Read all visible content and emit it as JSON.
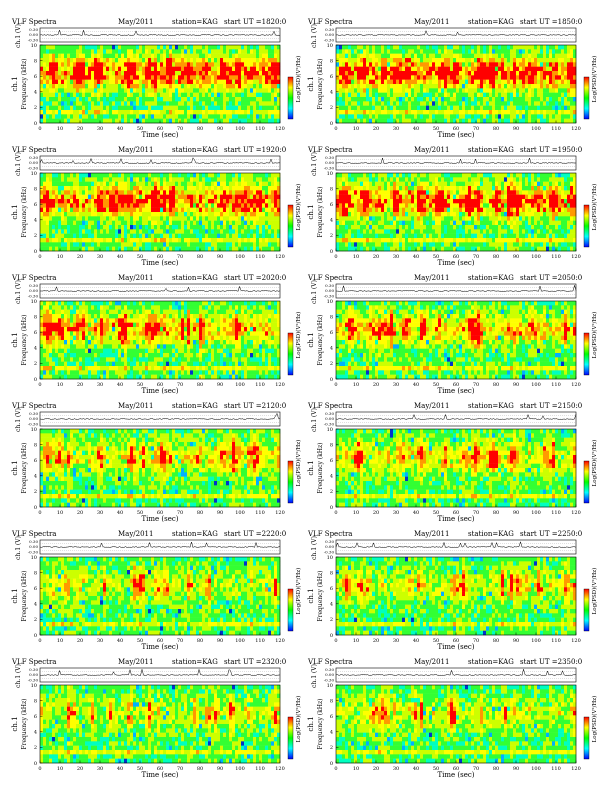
{
  "page": {
    "common": {
      "title_left": "VLF Spectra",
      "date": "May/2011",
      "station": "station=KAG",
      "time_prefix": "start  UT  =",
      "ylabel_channel": "ch.1",
      "ylabel_freq": "Frequency  (kHz)",
      "ylabel_top": "ch.1 (V)",
      "xlabel": "Time  (sec)",
      "colorbar_label": "Log(PSD)(V²/Hz)"
    }
  },
  "chart_data": [
    {
      "type": "heatmap",
      "start_ut": "1820:0",
      "x": {
        "label": "Time  (sec)",
        "lim": [
          0,
          120
        ],
        "ticks": [
          0,
          10,
          20,
          30,
          40,
          50,
          60,
          70,
          80,
          90,
          100,
          110,
          120
        ]
      },
      "y": {
        "label": "Frequency  (kHz)",
        "lim": [
          0,
          10
        ],
        "ticks": [
          0,
          2,
          4,
          6,
          8,
          10
        ]
      },
      "top_trace": {
        "label": "ch.1 (V)",
        "ticks": [
          "0.30",
          "0.00",
          "-0.30"
        ]
      },
      "colorbar": {
        "label": "Log(PSD)(V²/Hz)",
        "colors": [
          "#ff0000",
          "#ffff00",
          "#00ff00",
          "#00ffff",
          "#0000ff"
        ]
      },
      "activity": 0.95
    },
    {
      "type": "heatmap",
      "start_ut": "1850:0",
      "x": {
        "label": "Time  (sec)",
        "lim": [
          0,
          120
        ],
        "ticks": [
          0,
          10,
          20,
          30,
          40,
          50,
          60,
          70,
          80,
          90,
          100,
          110,
          120
        ]
      },
      "y": {
        "label": "Frequency  (kHz)",
        "lim": [
          0,
          10
        ],
        "ticks": [
          0,
          2,
          4,
          6,
          8,
          10
        ]
      },
      "top_trace": {
        "label": "ch.1 (V)",
        "ticks": [
          "0.30",
          "0.00",
          "-0.30"
        ]
      },
      "colorbar": {
        "label": "Log(PSD)(V²/Hz)",
        "colors": [
          "#ff0000",
          "#ffff00",
          "#00ff00",
          "#00ffff",
          "#0000ff"
        ]
      },
      "activity": 0.95
    },
    {
      "type": "heatmap",
      "start_ut": "1920:0",
      "x": {
        "label": "Time  (sec)",
        "lim": [
          0,
          120
        ],
        "ticks": [
          0,
          10,
          20,
          30,
          40,
          50,
          60,
          70,
          80,
          90,
          100,
          110,
          120
        ]
      },
      "y": {
        "label": "Frequency  (kHz)",
        "lim": [
          0,
          10
        ],
        "ticks": [
          0,
          2,
          4,
          6,
          8,
          10
        ]
      },
      "top_trace": {
        "label": "ch.1 (V)",
        "ticks": [
          "0.30",
          "0.00",
          "-0.30"
        ]
      },
      "colorbar": {
        "label": "Log(PSD)(V²/Hz)",
        "colors": [
          "#ff0000",
          "#ffff00",
          "#00ff00",
          "#00ffff",
          "#0000ff"
        ]
      },
      "activity": 0.85
    },
    {
      "type": "heatmap",
      "start_ut": "1950:0",
      "x": {
        "label": "Time  (sec)",
        "lim": [
          0,
          120
        ],
        "ticks": [
          0,
          10,
          20,
          30,
          40,
          50,
          60,
          70,
          80,
          90,
          100,
          110,
          120
        ]
      },
      "y": {
        "label": "Frequency  (kHz)",
        "lim": [
          0,
          10
        ],
        "ticks": [
          0,
          2,
          4,
          6,
          8,
          10
        ]
      },
      "top_trace": {
        "label": "ch.1 (V)",
        "ticks": [
          "0.30",
          "0.00",
          "-0.30"
        ]
      },
      "colorbar": {
        "label": "Log(PSD)(V²/Hz)",
        "colors": [
          "#ff0000",
          "#ffff00",
          "#00ff00",
          "#00ffff",
          "#0000ff"
        ]
      },
      "activity": 0.85
    },
    {
      "type": "heatmap",
      "start_ut": "2020:0",
      "x": {
        "label": "Time  (sec)",
        "lim": [
          0,
          120
        ],
        "ticks": [
          0,
          10,
          20,
          30,
          40,
          50,
          60,
          70,
          80,
          90,
          100,
          110,
          120
        ]
      },
      "y": {
        "label": "Frequency  (kHz)",
        "lim": [
          0,
          10
        ],
        "ticks": [
          0,
          2,
          4,
          6,
          8,
          10
        ]
      },
      "top_trace": {
        "label": "ch.1 (V)",
        "ticks": [
          "0.30",
          "0.00",
          "-0.30"
        ]
      },
      "colorbar": {
        "label": "Log(PSD)(V²/Hz)",
        "colors": [
          "#ff0000",
          "#ffff00",
          "#00ff00",
          "#00ffff",
          "#0000ff"
        ]
      },
      "activity": 0.7
    },
    {
      "type": "heatmap",
      "start_ut": "2050:0",
      "x": {
        "label": "Time  (sec)",
        "lim": [
          0,
          120
        ],
        "ticks": [
          0,
          10,
          20,
          30,
          40,
          50,
          60,
          70,
          80,
          90,
          100,
          110,
          120
        ]
      },
      "y": {
        "label": "Frequency  (kHz)",
        "lim": [
          0,
          10
        ],
        "ticks": [
          0,
          2,
          4,
          6,
          8,
          10
        ]
      },
      "top_trace": {
        "label": "ch.1 (V)",
        "ticks": [
          "0.30",
          "0.00",
          "-0.30"
        ]
      },
      "colorbar": {
        "label": "Log(PSD)(V²/Hz)",
        "colors": [
          "#ff0000",
          "#ffff00",
          "#00ff00",
          "#00ffff",
          "#0000ff"
        ]
      },
      "activity": 0.65
    },
    {
      "type": "heatmap",
      "start_ut": "2120:0",
      "x": {
        "label": "Time  (sec)",
        "lim": [
          0,
          120
        ],
        "ticks": [
          0,
          10,
          20,
          30,
          40,
          50,
          60,
          70,
          80,
          90,
          100,
          110,
          120
        ]
      },
      "y": {
        "label": "Frequency  (kHz)",
        "lim": [
          0,
          10
        ],
        "ticks": [
          0,
          2,
          4,
          6,
          8,
          10
        ]
      },
      "top_trace": {
        "label": "ch.1 (V)",
        "ticks": [
          "0.30",
          "0.00",
          "-0.30"
        ]
      },
      "colorbar": {
        "label": "Log(PSD)(V²/Hz)",
        "colors": [
          "#ff0000",
          "#ffff00",
          "#00ff00",
          "#00ffff",
          "#0000ff"
        ]
      },
      "activity": 0.5
    },
    {
      "type": "heatmap",
      "start_ut": "2150:0",
      "x": {
        "label": "Time  (sec)",
        "lim": [
          0,
          120
        ],
        "ticks": [
          0,
          10,
          20,
          30,
          40,
          50,
          60,
          70,
          80,
          90,
          100,
          110,
          120
        ]
      },
      "y": {
        "label": "Frequency  (kHz)",
        "lim": [
          0,
          10
        ],
        "ticks": [
          0,
          2,
          4,
          6,
          8,
          10
        ]
      },
      "top_trace": {
        "label": "ch.1 (V)",
        "ticks": [
          "0.30",
          "0.00",
          "-0.30"
        ]
      },
      "colorbar": {
        "label": "Log(PSD)(V²/Hz)",
        "colors": [
          "#ff0000",
          "#ffff00",
          "#00ff00",
          "#00ffff",
          "#0000ff"
        ]
      },
      "activity": 0.5
    },
    {
      "type": "heatmap",
      "start_ut": "2220:0",
      "x": {
        "label": "Time  (sec)",
        "lim": [
          0,
          120
        ],
        "ticks": [
          0,
          10,
          20,
          30,
          40,
          50,
          60,
          70,
          80,
          90,
          100,
          110,
          120
        ]
      },
      "y": {
        "label": "Frequency  (kHz)",
        "lim": [
          0,
          10
        ],
        "ticks": [
          0,
          2,
          4,
          6,
          8,
          10
        ]
      },
      "top_trace": {
        "label": "ch.1 (V)",
        "ticks": [
          "0.30",
          "0.00",
          "-0.30"
        ]
      },
      "colorbar": {
        "label": "Log(PSD)(V²/Hz)",
        "colors": [
          "#ff0000",
          "#ffff00",
          "#00ff00",
          "#00ffff",
          "#0000ff"
        ]
      },
      "activity": 0.35
    },
    {
      "type": "heatmap",
      "start_ut": "2250:0",
      "x": {
        "label": "Time  (sec)",
        "lim": [
          0,
          120
        ],
        "ticks": [
          0,
          10,
          20,
          30,
          40,
          50,
          60,
          70,
          80,
          90,
          100,
          110,
          120
        ]
      },
      "y": {
        "label": "Frequency  (kHz)",
        "lim": [
          0,
          10
        ],
        "ticks": [
          0,
          2,
          4,
          6,
          8,
          10
        ]
      },
      "top_trace": {
        "label": "ch.1 (V)",
        "ticks": [
          "0.30",
          "0.00",
          "-0.30"
        ]
      },
      "colorbar": {
        "label": "Log(PSD)(V²/Hz)",
        "colors": [
          "#ff0000",
          "#ffff00",
          "#00ff00",
          "#00ffff",
          "#0000ff"
        ]
      },
      "activity": 0.4
    },
    {
      "type": "heatmap",
      "start_ut": "2320:0",
      "x": {
        "label": "Time  (sec)",
        "lim": [
          0,
          120
        ],
        "ticks": [
          0,
          10,
          20,
          30,
          40,
          50,
          60,
          70,
          80,
          90,
          100,
          110,
          120
        ]
      },
      "y": {
        "label": "Frequency  (kHz)",
        "lim": [
          0,
          10
        ],
        "ticks": [
          0,
          2,
          4,
          6,
          8,
          10
        ]
      },
      "top_trace": {
        "label": "ch.1 (V)",
        "ticks": [
          "0.30",
          "0.00",
          "-0.30"
        ]
      },
      "colorbar": {
        "label": "Log(PSD)(V²/Hz)",
        "colors": [
          "#ff0000",
          "#ffff00",
          "#00ff00",
          "#00ffff",
          "#0000ff"
        ]
      },
      "activity": 0.3
    },
    {
      "type": "heatmap",
      "start_ut": "2350:0",
      "x": {
        "label": "Time  (sec)",
        "lim": [
          0,
          120
        ],
        "ticks": [
          0,
          10,
          20,
          30,
          40,
          50,
          60,
          70,
          80,
          90,
          100,
          110,
          120
        ]
      },
      "y": {
        "label": "Frequency  (kHz)",
        "lim": [
          0,
          10
        ],
        "ticks": [
          0,
          2,
          4,
          6,
          8,
          10
        ]
      },
      "top_trace": {
        "label": "ch.1 (V)",
        "ticks": [
          "0.30",
          "0.00",
          "-0.30"
        ]
      },
      "colorbar": {
        "label": "Log(PSD)(V²/Hz)",
        "colors": [
          "#ff0000",
          "#ffff00",
          "#00ff00",
          "#00ffff",
          "#0000ff"
        ]
      },
      "activity": 0.4
    }
  ]
}
